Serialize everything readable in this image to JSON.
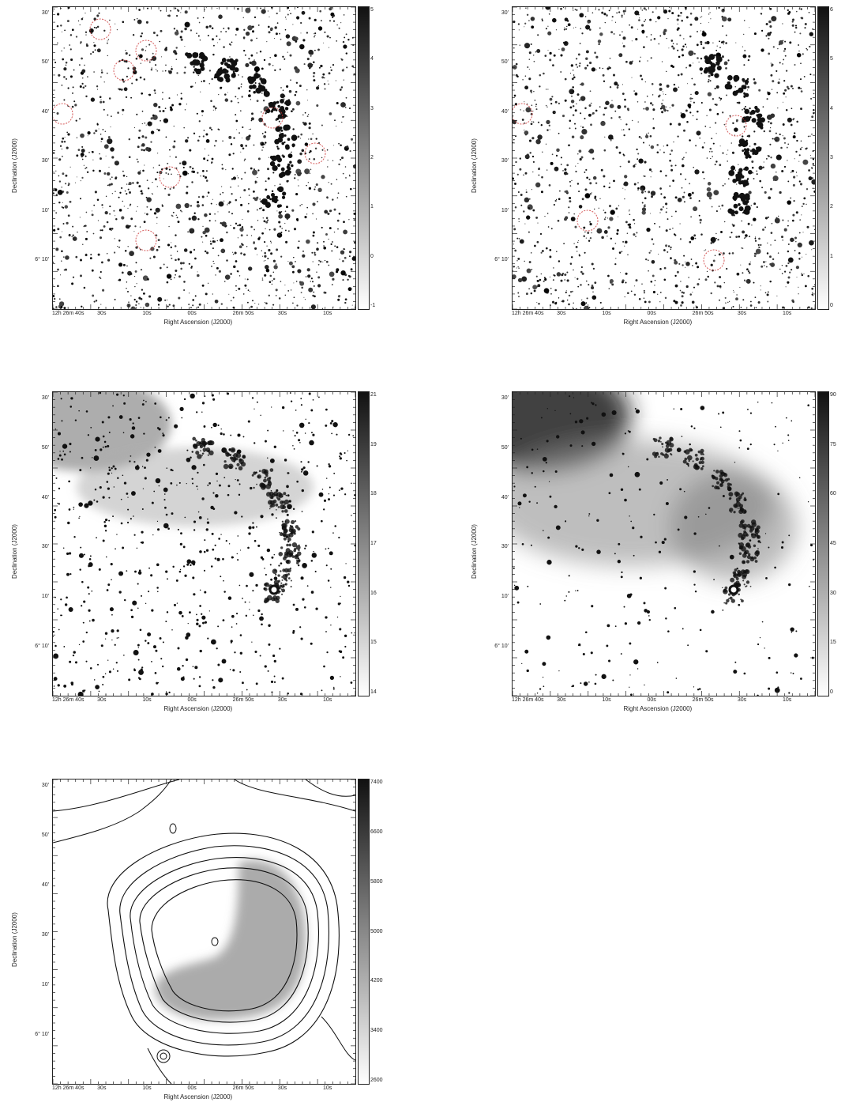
{
  "panels": [
    {
      "id": "p1",
      "style": "stars",
      "has_regions": true,
      "ylabel": "Declination (J2000)",
      "xlabel": "Right Ascension (J2000)",
      "yticks": [
        "30'",
        "50'",
        "40'",
        "30'",
        "10'",
        "6° 10'"
      ],
      "xticks": [
        "12h 26m 40s",
        "30s",
        "10s",
        "00s",
        "26m 50s",
        "30s",
        "10s"
      ],
      "cbar": [
        "5",
        "4",
        "3",
        "2",
        "1",
        "0",
        "-1"
      ]
    },
    {
      "id": "p2",
      "style": "stars",
      "has_regions": true,
      "ylabel": "Declination (J2000)",
      "xlabel": "Right Ascension (J2000)",
      "yticks": [
        "30'",
        "50'",
        "40'",
        "30'",
        "10'",
        "6° 10'"
      ],
      "xticks": [
        "12h 26m 40s",
        "30s",
        "10s",
        "00s",
        "26m 50s",
        "30s",
        "10s"
      ],
      "cbar": [
        "6",
        "5",
        "4",
        "3",
        "2",
        "1",
        "0"
      ]
    },
    {
      "id": "p3",
      "style": "nebula",
      "has_regions": false,
      "ylabel": "Declination (J2000)",
      "xlabel": "Right Ascension (J2000)",
      "yticks": [
        "30'",
        "50'",
        "40'",
        "30'",
        "10'",
        "6° 10'"
      ],
      "xticks": [
        "12h 26m 40s",
        "30s",
        "10s",
        "00s",
        "26m 50s",
        "30s",
        "10s"
      ],
      "cbar": [
        "21",
        "19",
        "18",
        "17",
        "16",
        "15",
        "14"
      ]
    },
    {
      "id": "p4",
      "style": "diffuse",
      "has_regions": false,
      "ylabel": "Declination (J2000)",
      "xlabel": "Right Ascension (J2000)",
      "yticks": [
        "30'",
        "50'",
        "40'",
        "30'",
        "10'",
        "6° 10'"
      ],
      "xticks": [
        "12h 26m 40s",
        "30s",
        "10s",
        "00s",
        "26m 50s",
        "30s",
        "10s"
      ],
      "cbar": [
        "90",
        "75",
        "60",
        "45",
        "30",
        "15",
        "0"
      ]
    },
    {
      "id": "p5",
      "style": "contour",
      "has_regions": false,
      "ylabel": "Declination (J2000)",
      "xlabel": "Right Ascension (J2000)",
      "yticks": [
        "30'",
        "50'",
        "40'",
        "30'",
        "10'",
        "6° 10'"
      ],
      "xticks": [
        "12h 26m 40s",
        "30s",
        "10s",
        "00s",
        "26m 50s",
        "30s",
        "10s"
      ],
      "cbar": [
        "7400",
        "6600",
        "5800",
        "5000",
        "4200",
        "3400",
        "2600"
      ]
    }
  ]
}
